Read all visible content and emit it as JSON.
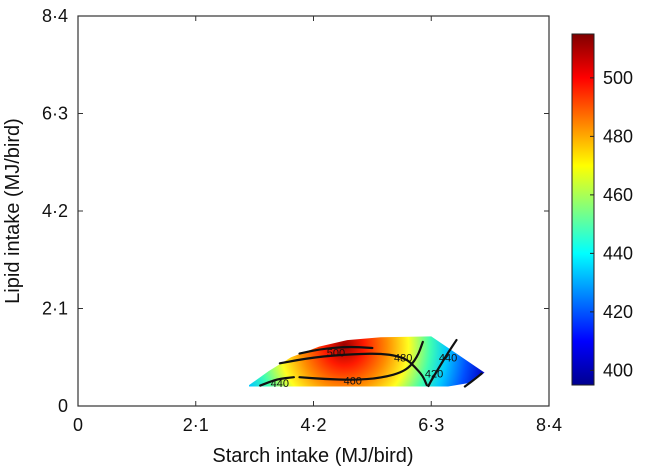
{
  "chart_data": {
    "type": "heatmap",
    "title": "",
    "xlabel": "Starch intake (MJ/bird)",
    "ylabel": "Lipid intake (MJ/bird)",
    "xlim": [
      0,
      8.4
    ],
    "ylim": [
      0,
      8.4
    ],
    "x_ticks": [
      0,
      2.1,
      4.2,
      6.3,
      8.4
    ],
    "x_tick_labels": [
      "0",
      "2·1",
      "4·2",
      "6·3",
      "8·4"
    ],
    "y_ticks": [
      0,
      2.1,
      4.2,
      6.3,
      8.4
    ],
    "y_tick_labels": [
      "0",
      "2·1",
      "4·2",
      "6·3",
      "8·4"
    ],
    "colorbar": {
      "range": [
        395,
        515
      ],
      "ticks": [
        400,
        420,
        440,
        460,
        480,
        500
      ],
      "tick_labels": [
        "400",
        "420",
        "440",
        "460",
        "480",
        "500"
      ],
      "colormap": "jet"
    },
    "region": [
      [
        3.05,
        0.45
      ],
      [
        3.4,
        0.75
      ],
      [
        3.8,
        1.05
      ],
      [
        4.3,
        1.28
      ],
      [
        4.8,
        1.42
      ],
      [
        5.4,
        1.48
      ],
      [
        6.3,
        1.5
      ],
      [
        7.25,
        0.72
      ],
      [
        7.0,
        0.5
      ],
      [
        6.6,
        0.42
      ],
      [
        3.05,
        0.42
      ]
    ],
    "peak": {
      "x": 4.75,
      "y": 1.3,
      "value": 512
    },
    "contours": [
      {
        "level": 500,
        "label": "500",
        "label_at": [
          4.6,
          1.15
        ],
        "points": [
          [
            3.95,
            1.13
          ],
          [
            4.3,
            1.22
          ],
          [
            4.8,
            1.28
          ],
          [
            5.25,
            1.25
          ]
        ]
      },
      {
        "level": 480,
        "label": "480",
        "label_at": [
          5.8,
          1.05
        ],
        "points": [
          [
            3.6,
            0.92
          ],
          [
            4.2,
            1.05
          ],
          [
            4.9,
            1.12
          ],
          [
            5.5,
            1.13
          ],
          [
            5.85,
            1.02
          ],
          [
            6.0,
            0.85
          ],
          [
            6.15,
            0.65
          ],
          [
            6.22,
            0.45
          ]
        ]
      },
      {
        "level": 460,
        "label": "460",
        "label_at": [
          4.9,
          0.55
        ],
        "points": [
          [
            3.95,
            0.62
          ],
          [
            4.4,
            0.58
          ],
          [
            4.9,
            0.56
          ],
          [
            5.4,
            0.6
          ],
          [
            5.85,
            0.75
          ],
          [
            6.05,
            1.05
          ],
          [
            6.15,
            1.38
          ]
        ]
      },
      {
        "level": 440,
        "label": "440",
        "label_at": [
          6.6,
          1.05
        ],
        "points": [
          [
            6.75,
            1.42
          ],
          [
            6.6,
            1.15
          ],
          [
            6.45,
            0.85
          ],
          [
            6.3,
            0.55
          ],
          [
            6.25,
            0.43
          ]
        ]
      },
      {
        "level": 440,
        "label": "440",
        "label_at": [
          3.6,
          0.5
        ],
        "points": [
          [
            3.25,
            0.44
          ],
          [
            3.55,
            0.58
          ],
          [
            3.85,
            0.62
          ]
        ]
      },
      {
        "level": 420,
        "label": "420",
        "label_at": [
          6.35,
          0.7
        ],
        "points": [
          [
            6.9,
            0.42
          ],
          [
            7.1,
            0.6
          ],
          [
            7.2,
            0.7
          ]
        ]
      }
    ]
  }
}
